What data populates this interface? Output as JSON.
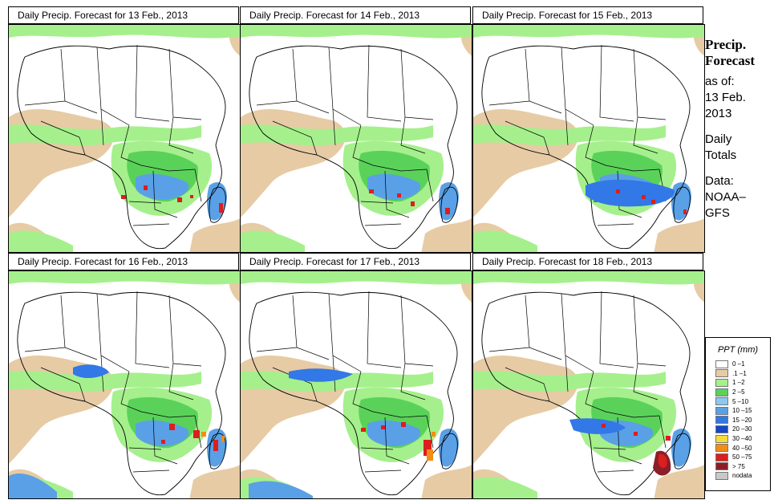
{
  "panels": [
    {
      "title": "Daily Precip. Forecast for  13 Feb., 2013"
    },
    {
      "title": "Daily Precip. Forecast for  14 Feb., 2013"
    },
    {
      "title": "Daily Precip. Forecast for  15 Feb., 2013"
    },
    {
      "title": "Daily Precip. Forecast for  16 Feb., 2013"
    },
    {
      "title": "Daily Precip. Forecast for  17 Feb., 2013"
    },
    {
      "title": "Daily Precip. Forecast for  18 Feb., 2013"
    }
  ],
  "sidebar": {
    "heading1": "Precip.",
    "heading2": "Forecast",
    "asof": "as of:",
    "date1": "13 Feb.",
    "date2": "2013",
    "totals1": "Daily",
    "totals2": "Totals",
    "data1": "Data:",
    "data2": "NOAA–",
    "data3": "GFS"
  },
  "legend": {
    "title": "PPT (mm)",
    "items": [
      {
        "label": "0 –1",
        "color": "#ffffff"
      },
      {
        "label": ".1 –1",
        "color": "#e6cba5"
      },
      {
        "label": "1 –2",
        "color": "#a5f08c"
      },
      {
        "label": "2 –5",
        "color": "#5ad25a"
      },
      {
        "label": "5 –10",
        "color": "#8cc8f0"
      },
      {
        "label": "10 –15",
        "color": "#5aa0e6"
      },
      {
        "label": "15 –20",
        "color": "#3278e6"
      },
      {
        "label": "20 –30",
        "color": "#1446c8"
      },
      {
        "label": "30 –40",
        "color": "#f5dc3c"
      },
      {
        "label": "40 –50",
        "color": "#f58c14"
      },
      {
        "label": "50 –75",
        "color": "#dc1e1e"
      },
      {
        "label": "> 75",
        "color": "#8c1e28"
      },
      {
        "label": "nodata",
        "color": "#c8c8c8"
      }
    ]
  }
}
